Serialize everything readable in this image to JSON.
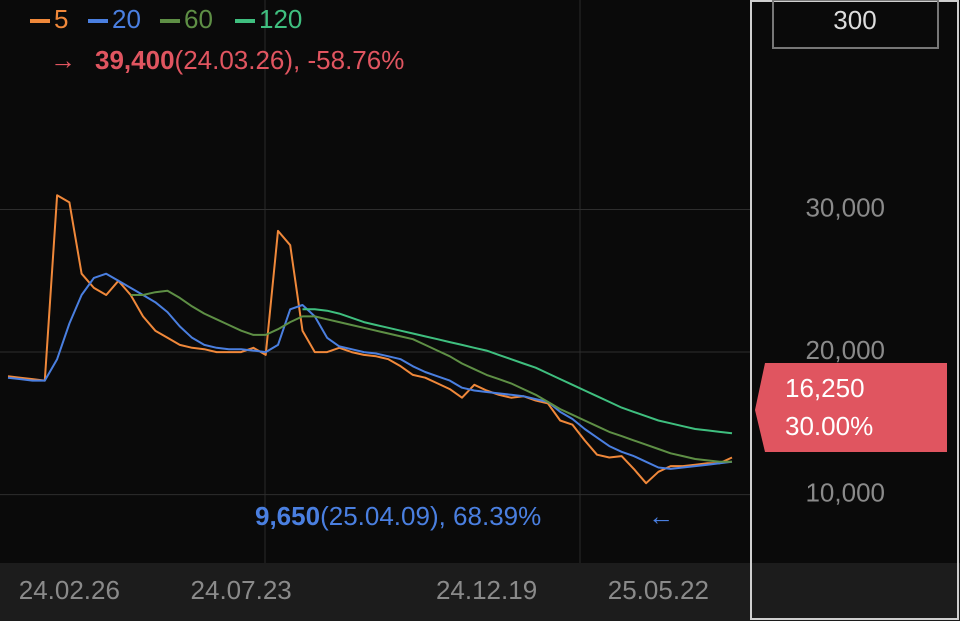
{
  "chart_data": {
    "type": "line",
    "categories": [
      null,
      null,
      null,
      null,
      null,
      "24.02.26",
      null,
      null,
      null,
      null,
      null,
      null,
      null,
      null,
      null,
      null,
      null,
      null,
      null,
      "24.07.23",
      null,
      null,
      null,
      null,
      null,
      null,
      null,
      null,
      null,
      null,
      null,
      null,
      null,
      null,
      null,
      null,
      null,
      null,
      null,
      "24.12.19",
      null,
      null,
      null,
      null,
      null,
      null,
      null,
      null,
      null,
      null,
      null,
      null,
      null,
      "25.05.22",
      null,
      null,
      null,
      null,
      null,
      null
    ],
    "series": [
      {
        "name": "5",
        "color": "#f0883a",
        "values": [
          18300,
          18200,
          18100,
          18000,
          31000,
          30500,
          25500,
          24500,
          24000,
          25000,
          24000,
          22500,
          21500,
          21000,
          20500,
          20300,
          20200,
          20000,
          20000,
          20000,
          20300,
          19800,
          28500,
          27500,
          21500,
          20000,
          20000,
          20300,
          20000,
          19800,
          19700,
          19500,
          19000,
          18400,
          18200,
          17800,
          17400,
          16800,
          17700,
          17300,
          17000,
          16800,
          16900,
          16600,
          16400,
          15200,
          14900,
          13800,
          12800,
          12600,
          12700,
          11800,
          10800,
          11600,
          12000,
          12000,
          12100,
          12200,
          12200,
          12600
        ]
      },
      {
        "name": "20",
        "color": "#4a7fe0",
        "values": [
          18200,
          18100,
          18000,
          18000,
          19500,
          22000,
          24000,
          25200,
          25500,
          25000,
          24500,
          24000,
          23500,
          22800,
          21800,
          21000,
          20500,
          20300,
          20200,
          20200,
          20100,
          20000,
          20500,
          23000,
          23300,
          22500,
          21000,
          20400,
          20200,
          20000,
          19900,
          19700,
          19500,
          19000,
          18600,
          18300,
          18000,
          17500,
          17300,
          17200,
          17100,
          17000,
          16900,
          16700,
          16500,
          15800,
          15300,
          14600,
          14000,
          13400,
          13000,
          12700,
          12300,
          11900,
          11800,
          11900,
          12000,
          12100,
          12200,
          12300
        ]
      },
      {
        "name": "60",
        "color": "#5e8f45",
        "values": [
          null,
          null,
          null,
          null,
          null,
          null,
          null,
          null,
          null,
          null,
          24000,
          24000,
          24200,
          24300,
          23800,
          23200,
          22700,
          22300,
          21900,
          21500,
          21200,
          21200,
          21600,
          22100,
          22500,
          22500,
          22300,
          22100,
          21900,
          21700,
          21500,
          21300,
          21100,
          20900,
          20500,
          20100,
          19700,
          19200,
          18800,
          18400,
          18100,
          17800,
          17400,
          17000,
          16500,
          16000,
          15600,
          15200,
          14800,
          14400,
          14100,
          13800,
          13500,
          13200,
          12900,
          12700,
          12500,
          12400,
          12300,
          12300
        ]
      },
      {
        "name": "120",
        "color": "#3fbf7f",
        "values": [
          null,
          null,
          null,
          null,
          null,
          null,
          null,
          null,
          null,
          null,
          null,
          null,
          null,
          null,
          null,
          null,
          null,
          null,
          null,
          null,
          null,
          null,
          null,
          null,
          23000,
          23000,
          22900,
          22700,
          22400,
          22100,
          21900,
          21700,
          21500,
          21300,
          21100,
          20900,
          20700,
          20500,
          20300,
          20100,
          19800,
          19500,
          19200,
          18900,
          18500,
          18100,
          17700,
          17300,
          16900,
          16500,
          16100,
          15800,
          15500,
          15200,
          15000,
          14800,
          14600,
          14500,
          14400,
          14300
        ]
      }
    ],
    "ylim": [
      5200,
      44700
    ],
    "yticks": [
      {
        "value": 10000,
        "label": "10,000"
      },
      {
        "value": 20000,
        "label": "20,000"
      },
      {
        "value": 30000,
        "label": "30,000"
      }
    ],
    "grid": true,
    "top_box": "300",
    "max_marker": {
      "arrow": "→",
      "price": "39,400",
      "detail": "(24.03.26), -58.76%"
    },
    "min_marker": {
      "arrow": "←",
      "price": "9,650",
      "detail": "(25.04.09), 68.39%"
    },
    "current_price": "16,250",
    "current_change": "30.00%"
  }
}
